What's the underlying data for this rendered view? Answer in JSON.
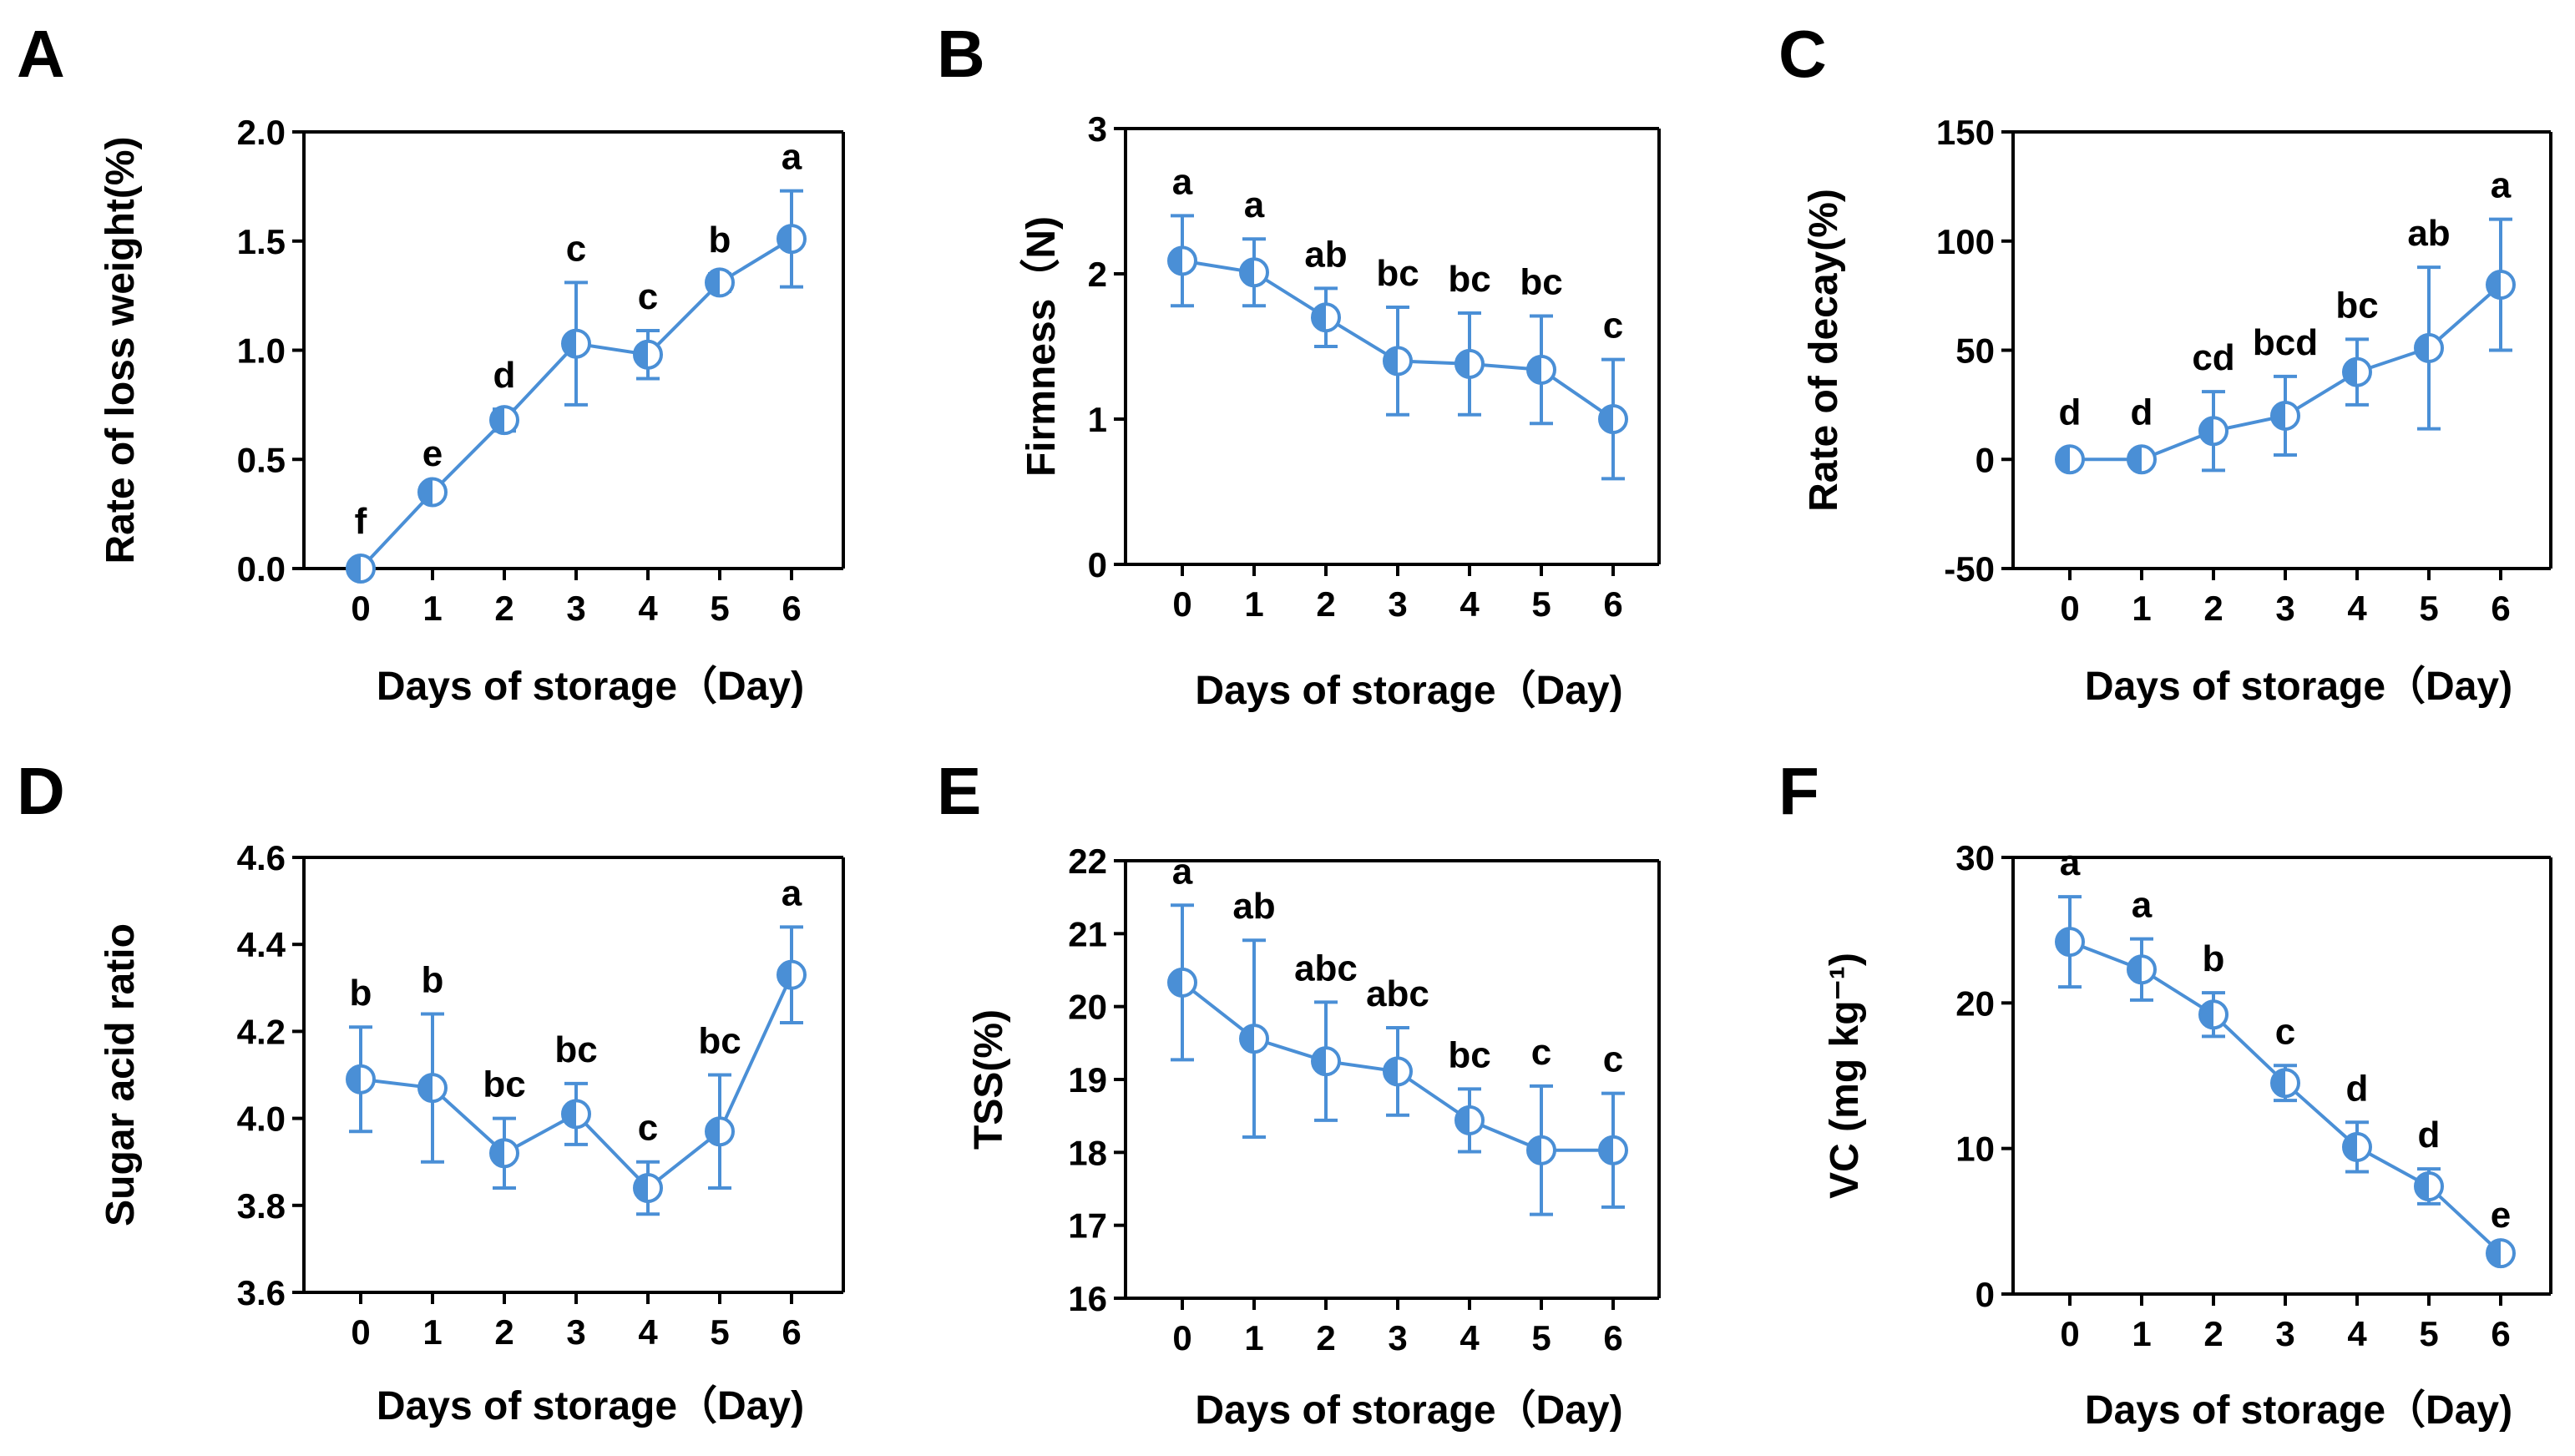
{
  "colors": {
    "series": "#4a8fd6",
    "axis": "#000000",
    "text": "#000000",
    "background": "#ffffff"
  },
  "chart_data": [
    {
      "panel": "A",
      "type": "line",
      "title": "",
      "xlabel": "Days of storage（Day)",
      "ylabel": "Rate of loss weight(%)",
      "x": [
        0,
        1,
        2,
        3,
        4,
        5,
        6
      ],
      "xticks": [
        "0",
        "1",
        "2",
        "3",
        "4",
        "5",
        "6"
      ],
      "ylim": [
        0,
        2.0
      ],
      "yticks": [
        0,
        0.5,
        1.0,
        1.5,
        2.0
      ],
      "ytick_labels": [
        "0.0",
        "0.5",
        "1.0",
        "1.5",
        "2.0"
      ],
      "values": [
        0.0,
        0.35,
        0.68,
        1.03,
        0.98,
        1.31,
        1.51
      ],
      "errors": [
        0.0,
        0.02,
        0.05,
        0.28,
        0.11,
        0.04,
        0.22
      ],
      "letters": [
        "f",
        "e",
        "d",
        "c",
        "c",
        "b",
        "a"
      ]
    },
    {
      "panel": "B",
      "type": "line",
      "title": "",
      "xlabel": "Days of storage（Day)",
      "ylabel": "Firmness（N)",
      "x": [
        0,
        1,
        2,
        3,
        4,
        5,
        6
      ],
      "xticks": [
        "0",
        "1",
        "2",
        "3",
        "4",
        "5",
        "6"
      ],
      "ylim": [
        0,
        3
      ],
      "yticks": [
        0,
        1,
        2,
        3
      ],
      "ytick_labels": [
        "0",
        "1",
        "2",
        "3"
      ],
      "values": [
        2.09,
        2.01,
        1.7,
        1.4,
        1.38,
        1.34,
        1.0
      ],
      "errors": [
        0.31,
        0.23,
        0.2,
        0.37,
        0.35,
        0.37,
        0.41
      ],
      "letters": [
        "a",
        "a",
        "ab",
        "bc",
        "bc",
        "bc",
        "c"
      ]
    },
    {
      "panel": "C",
      "type": "line",
      "title": "",
      "xlabel": "Days of storage（Day)",
      "ylabel": "Rate of decay(%)",
      "x": [
        0,
        1,
        2,
        3,
        4,
        5,
        6
      ],
      "xticks": [
        "0",
        "1",
        "2",
        "3",
        "4",
        "5",
        "6"
      ],
      "ylim": [
        -50,
        150
      ],
      "yticks": [
        -50,
        0,
        50,
        100,
        150
      ],
      "ytick_labels": [
        "-50",
        "0",
        "50",
        "100",
        "150"
      ],
      "values": [
        0,
        0,
        13,
        20,
        40,
        51,
        80
      ],
      "errors": [
        0,
        0,
        18,
        18,
        15,
        37,
        30
      ],
      "letters": [
        "d",
        "d",
        "cd",
        "bcd",
        "bc",
        "ab",
        "a"
      ]
    },
    {
      "panel": "D",
      "type": "line",
      "title": "",
      "xlabel": "Days of storage（Day)",
      "ylabel": "Sugar acid ratio",
      "x": [
        0,
        1,
        2,
        3,
        4,
        5,
        6
      ],
      "xticks": [
        "0",
        "1",
        "2",
        "3",
        "4",
        "5",
        "6"
      ],
      "ylim": [
        3.6,
        4.6
      ],
      "yticks": [
        3.6,
        3.8,
        4.0,
        4.2,
        4.4,
        4.6
      ],
      "ytick_labels": [
        "3.6",
        "3.8",
        "4.0",
        "4.2",
        "4.4",
        "4.6"
      ],
      "values": [
        4.09,
        4.07,
        3.92,
        4.01,
        3.84,
        3.97,
        4.33
      ],
      "errors": [
        0.12,
        0.17,
        0.08,
        0.07,
        0.06,
        0.13,
        0.11
      ],
      "letters": [
        "b",
        "b",
        "bc",
        "bc",
        "c",
        "bc",
        "a"
      ]
    },
    {
      "panel": "E",
      "type": "line",
      "title": "",
      "xlabel": "Days of storage（Day)",
      "ylabel": "TSS(%)",
      "x": [
        0,
        1,
        2,
        3,
        4,
        5,
        6
      ],
      "xticks": [
        "0",
        "1",
        "2",
        "3",
        "4",
        "5",
        "6"
      ],
      "ylim": [
        16,
        22
      ],
      "yticks": [
        16,
        17,
        18,
        19,
        20,
        21,
        22
      ],
      "ytick_labels": [
        "16",
        "17",
        "18",
        "19",
        "20",
        "21",
        "22"
      ],
      "values": [
        20.33,
        19.56,
        19.25,
        19.11,
        18.44,
        18.03,
        18.03
      ],
      "errors": [
        1.06,
        1.35,
        0.81,
        0.6,
        0.43,
        0.88,
        0.78
      ],
      "letters": [
        "a",
        "ab",
        "abc",
        "abc",
        "bc",
        "c",
        "c"
      ]
    },
    {
      "panel": "F",
      "type": "line",
      "title": "",
      "xlabel": "Days of storage（Day)",
      "ylabel": "VC (mg kg⁻¹)",
      "x": [
        0,
        1,
        2,
        3,
        4,
        5,
        6
      ],
      "xticks": [
        "0",
        "1",
        "2",
        "3",
        "4",
        "5",
        "6"
      ],
      "ylim": [
        0,
        30
      ],
      "yticks": [
        0,
        10,
        20,
        30
      ],
      "ytick_labels": [
        "0",
        "10",
        "20",
        "30"
      ],
      "values": [
        24.2,
        22.3,
        19.2,
        14.5,
        10.1,
        7.4,
        2.8
      ],
      "errors": [
        3.1,
        2.1,
        1.5,
        1.2,
        1.7,
        1.2,
        0.3
      ],
      "letters": [
        "a",
        "a",
        "b",
        "c",
        "d",
        "d",
        "e"
      ]
    }
  ]
}
